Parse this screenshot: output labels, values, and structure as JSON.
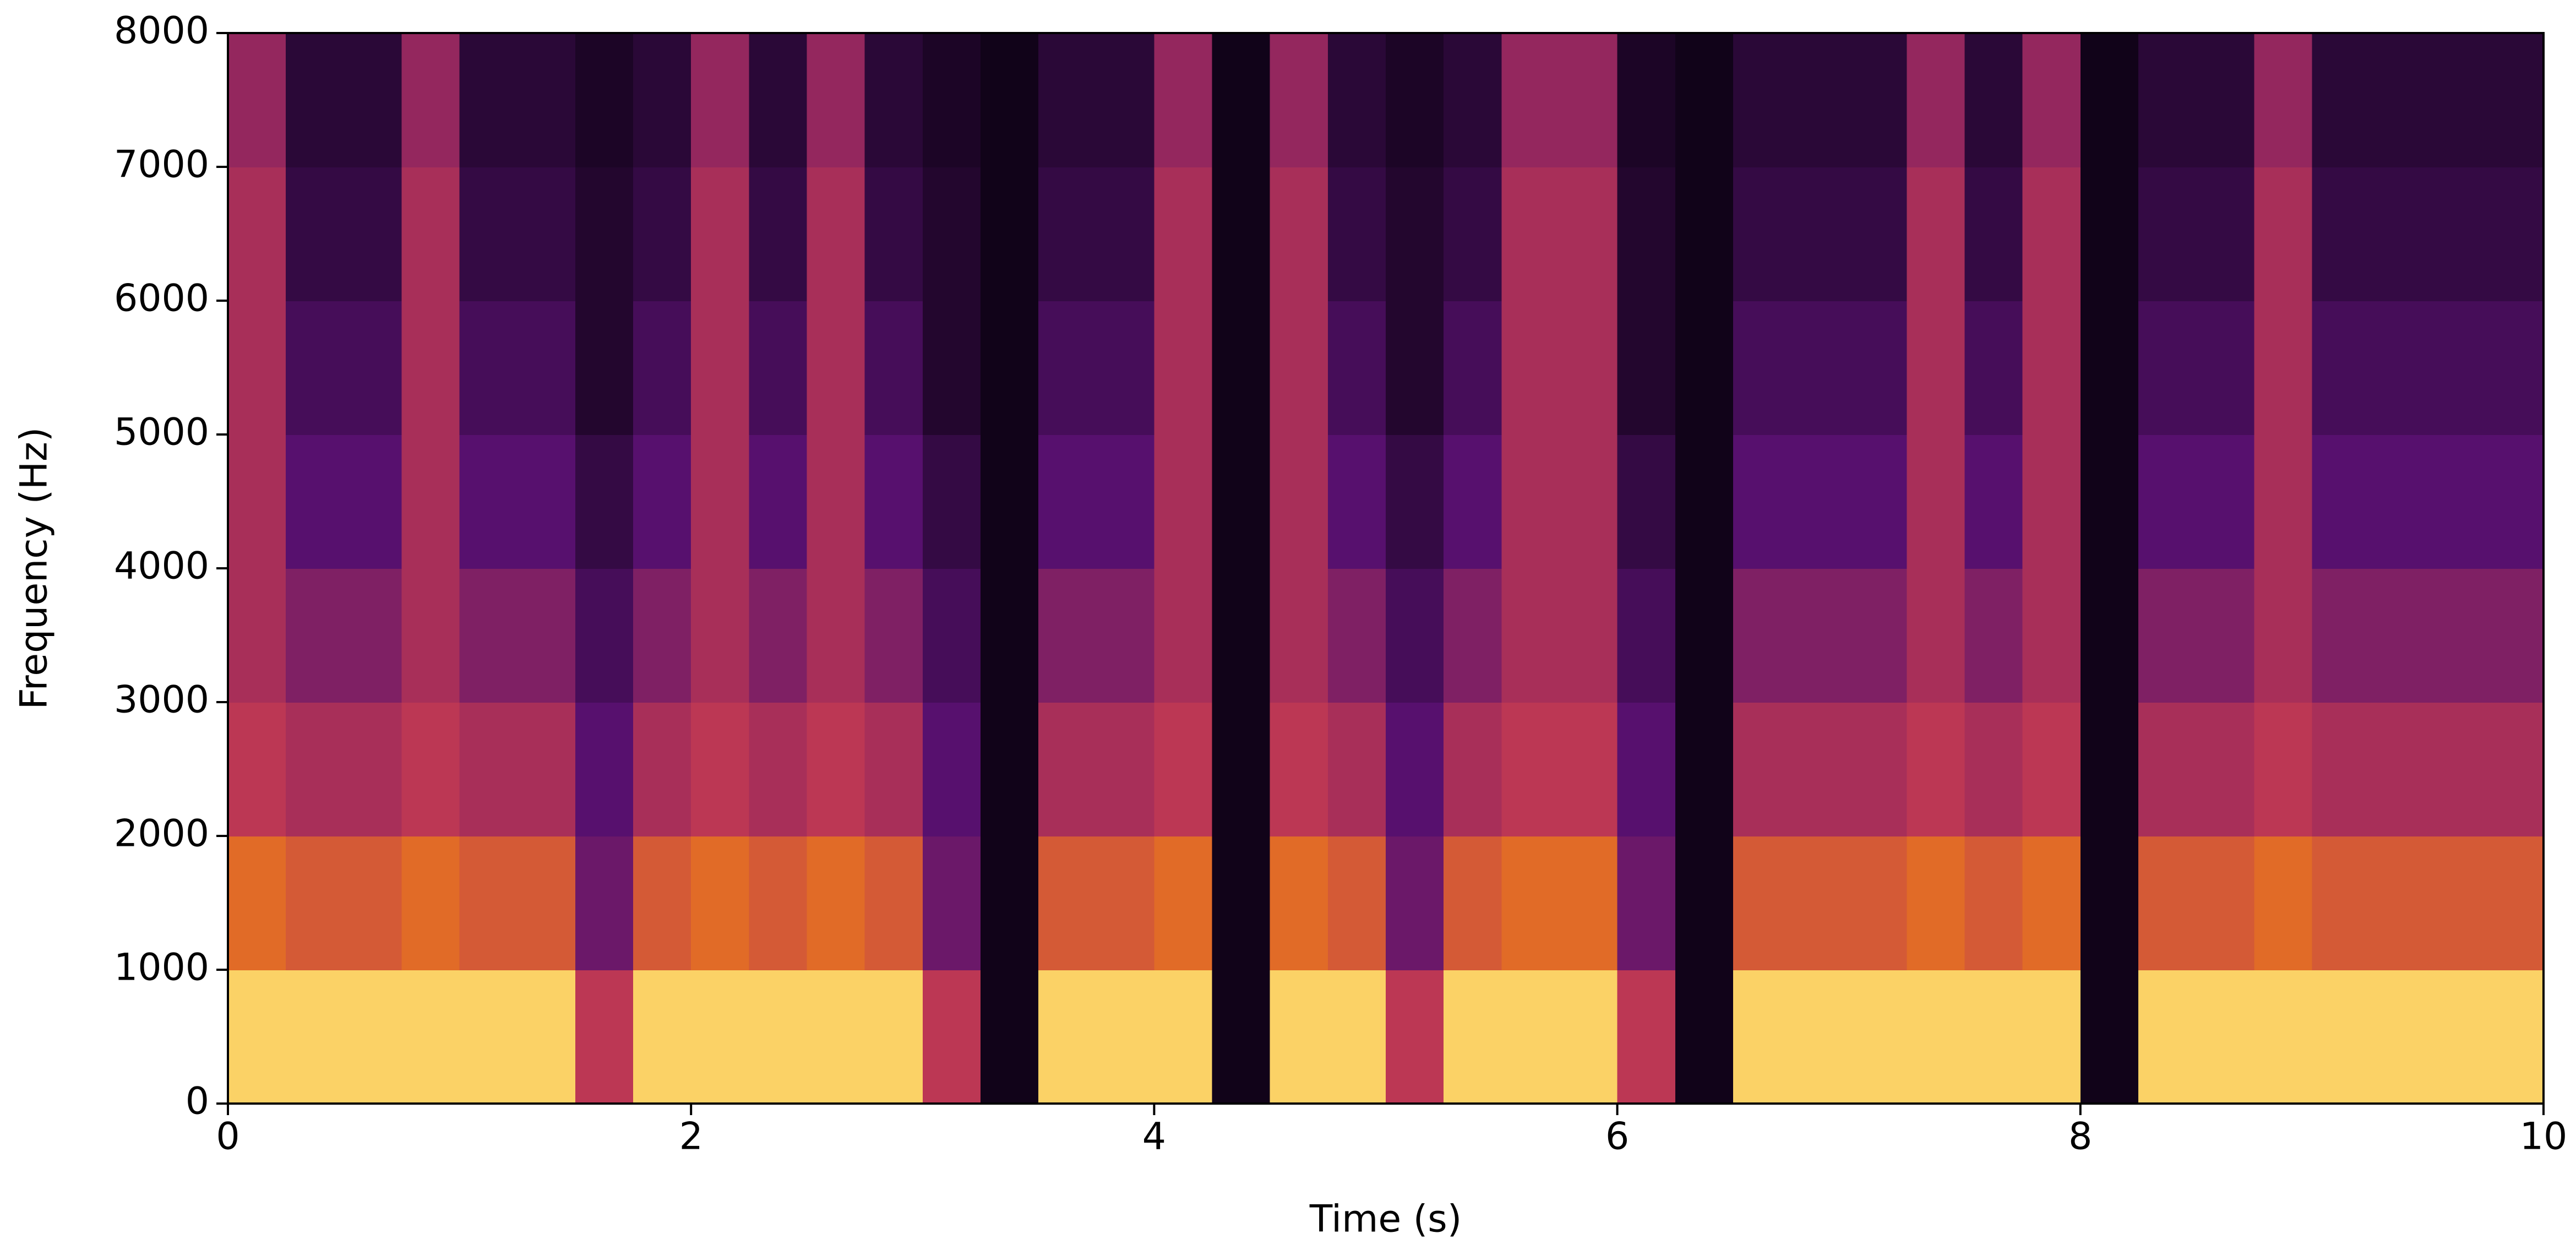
{
  "chart_data": {
    "type": "spectrogram",
    "xlabel": "Time (s)",
    "ylabel": "Frequency (Hz)",
    "xlim": [
      0,
      10
    ],
    "ylim": [
      0,
      8000
    ],
    "xticks": [
      0,
      2,
      4,
      6,
      8,
      10
    ],
    "yticks": [
      0,
      1000,
      2000,
      3000,
      4000,
      5000,
      6000,
      7000,
      8000
    ],
    "cmap": "inferno",
    "z": [
      [
        0.9,
        0.9,
        0.9,
        0.9,
        0.9,
        0.9,
        0.5,
        0.9,
        0.9,
        0.9,
        0.9,
        0.9,
        0.5,
        0.05,
        0.9,
        0.9,
        0.9,
        0.05,
        0.9,
        0.9,
        0.5,
        0.9,
        0.9,
        0.9,
        0.5,
        0.05,
        0.9,
        0.9,
        0.9,
        0.9,
        0.9,
        0.9,
        0.05,
        0.9,
        0.9,
        0.9,
        0.9,
        0.9,
        0.9,
        0.9
      ],
      [
        0.65,
        0.6,
        0.6,
        0.65,
        0.6,
        0.6,
        0.3,
        0.6,
        0.65,
        0.6,
        0.65,
        0.6,
        0.3,
        0.05,
        0.6,
        0.6,
        0.65,
        0.05,
        0.65,
        0.6,
        0.3,
        0.6,
        0.65,
        0.65,
        0.3,
        0.05,
        0.6,
        0.6,
        0.6,
        0.65,
        0.6,
        0.65,
        0.05,
        0.6,
        0.6,
        0.65,
        0.6,
        0.6,
        0.6,
        0.6
      ],
      [
        0.5,
        0.45,
        0.45,
        0.5,
        0.45,
        0.45,
        0.25,
        0.45,
        0.5,
        0.45,
        0.5,
        0.45,
        0.25,
        0.05,
        0.45,
        0.45,
        0.5,
        0.05,
        0.5,
        0.45,
        0.25,
        0.45,
        0.5,
        0.5,
        0.25,
        0.05,
        0.45,
        0.45,
        0.45,
        0.5,
        0.45,
        0.5,
        0.05,
        0.45,
        0.45,
        0.5,
        0.45,
        0.45,
        0.45,
        0.45
      ],
      [
        0.45,
        0.35,
        0.35,
        0.45,
        0.35,
        0.35,
        0.2,
        0.35,
        0.45,
        0.35,
        0.45,
        0.35,
        0.2,
        0.05,
        0.35,
        0.35,
        0.45,
        0.05,
        0.45,
        0.35,
        0.2,
        0.35,
        0.45,
        0.45,
        0.2,
        0.05,
        0.35,
        0.35,
        0.35,
        0.45,
        0.35,
        0.45,
        0.05,
        0.35,
        0.35,
        0.45,
        0.35,
        0.35,
        0.35,
        0.35
      ],
      [
        0.45,
        0.25,
        0.25,
        0.45,
        0.25,
        0.25,
        0.15,
        0.25,
        0.45,
        0.25,
        0.45,
        0.25,
        0.15,
        0.05,
        0.25,
        0.25,
        0.45,
        0.05,
        0.45,
        0.25,
        0.15,
        0.25,
        0.45,
        0.45,
        0.15,
        0.05,
        0.25,
        0.25,
        0.25,
        0.45,
        0.25,
        0.45,
        0.05,
        0.25,
        0.25,
        0.45,
        0.25,
        0.25,
        0.25,
        0.25
      ],
      [
        0.45,
        0.2,
        0.2,
        0.45,
        0.2,
        0.2,
        0.1,
        0.2,
        0.45,
        0.2,
        0.45,
        0.2,
        0.1,
        0.05,
        0.2,
        0.2,
        0.45,
        0.05,
        0.45,
        0.2,
        0.1,
        0.2,
        0.45,
        0.45,
        0.1,
        0.05,
        0.2,
        0.2,
        0.2,
        0.45,
        0.2,
        0.45,
        0.05,
        0.2,
        0.2,
        0.45,
        0.2,
        0.2,
        0.2,
        0.2
      ],
      [
        0.45,
        0.15,
        0.15,
        0.45,
        0.15,
        0.15,
        0.1,
        0.15,
        0.45,
        0.15,
        0.45,
        0.15,
        0.1,
        0.05,
        0.15,
        0.15,
        0.45,
        0.05,
        0.45,
        0.15,
        0.1,
        0.15,
        0.45,
        0.45,
        0.1,
        0.05,
        0.15,
        0.15,
        0.15,
        0.45,
        0.15,
        0.45,
        0.05,
        0.15,
        0.15,
        0.45,
        0.15,
        0.15,
        0.15,
        0.15
      ],
      [
        0.4,
        0.12,
        0.12,
        0.4,
        0.12,
        0.12,
        0.08,
        0.12,
        0.4,
        0.12,
        0.4,
        0.12,
        0.08,
        0.05,
        0.12,
        0.12,
        0.4,
        0.05,
        0.4,
        0.12,
        0.08,
        0.12,
        0.4,
        0.4,
        0.08,
        0.05,
        0.12,
        0.12,
        0.12,
        0.4,
        0.12,
        0.4,
        0.05,
        0.12,
        0.12,
        0.4,
        0.12,
        0.12,
        0.12,
        0.12
      ]
    ]
  }
}
